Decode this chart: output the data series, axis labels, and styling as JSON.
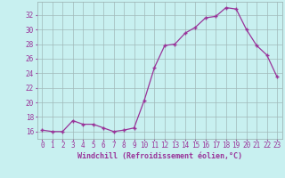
{
  "x": [
    0,
    1,
    2,
    3,
    4,
    5,
    6,
    7,
    8,
    9,
    10,
    11,
    12,
    13,
    14,
    15,
    16,
    17,
    18,
    19,
    20,
    21,
    22,
    23
  ],
  "y": [
    16.2,
    16.0,
    16.0,
    17.5,
    17.0,
    17.0,
    16.5,
    16.0,
    16.2,
    16.5,
    20.3,
    24.8,
    27.8,
    28.0,
    29.5,
    30.3,
    31.6,
    31.8,
    33.0,
    32.8,
    30.0,
    27.8,
    26.5,
    23.5
  ],
  "line_color": "#993399",
  "marker": "+",
  "bg_color": "#c8f0f0",
  "grid_color": "#a0b8b8",
  "xlabel": "Windchill (Refroidissement éolien,°C)",
  "ylabel_ticks": [
    16,
    18,
    20,
    22,
    24,
    26,
    28,
    30,
    32
  ],
  "xlim": [
    -0.5,
    23.5
  ],
  "ylim": [
    15.0,
    33.8
  ],
  "axis_fontsize": 6,
  "tick_fontsize": 5.5,
  "xlabel_fontsize": 6
}
